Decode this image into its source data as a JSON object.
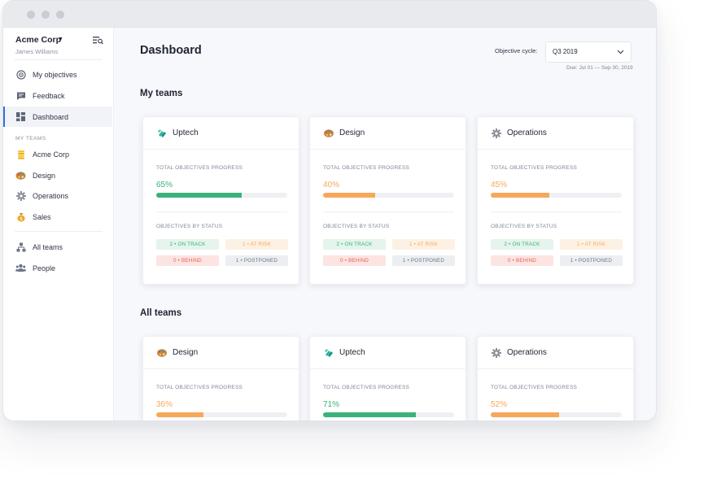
{
  "sidebar": {
    "org_name": "Acme Corp",
    "user_name": "James Williams",
    "nav": [
      {
        "label": "My objectives",
        "icon": "target-icon"
      },
      {
        "label": "Feedback",
        "icon": "chat-icon"
      },
      {
        "label": "Dashboard",
        "icon": "grid-icon",
        "active": true
      }
    ],
    "teams_section": "MY TEAMS",
    "teams": [
      {
        "label": "Acme Corp",
        "icon": "coins-icon"
      },
      {
        "label": "Design",
        "icon": "palette-icon"
      },
      {
        "label": "Operations",
        "icon": "gear-icon"
      },
      {
        "label": "Sales",
        "icon": "money-bag-icon"
      }
    ],
    "bottom": [
      {
        "label": "All teams",
        "icon": "org-chart-icon"
      },
      {
        "label": "People",
        "icon": "people-icon"
      }
    ]
  },
  "header": {
    "title": "Dashboard",
    "cycle_label": "Objective cycle:",
    "cycle_value": "Q3 2019",
    "due": "Due: Jul 01 — Sep 30, 2019"
  },
  "labels": {
    "progress": "TOTAL OBJECTIVES PROGRESS",
    "by_status": "OBJECTIVES BY STATUS"
  },
  "my_teams": {
    "title": "My teams",
    "cards": [
      {
        "name": "Uptech",
        "icon": "uptech-logo-icon",
        "progress": "65%",
        "progress_value": 0.65,
        "color": "#3bb27a",
        "on_track": "2 • ON TRACK",
        "at_risk": "1 • AT RISK",
        "behind": "0 • BEHIND",
        "postponed": "1 • POSTPONED"
      },
      {
        "name": "Design",
        "icon": "palette-icon",
        "progress": "40%",
        "progress_value": 0.4,
        "color": "#f6a85a",
        "on_track": "2 • ON TRACK",
        "at_risk": "1 • AT RISK",
        "behind": "0 • BEHIND",
        "postponed": "1 • POSTPONED"
      },
      {
        "name": "Operations",
        "icon": "gear-icon",
        "progress": "45%",
        "progress_value": 0.45,
        "color": "#f6a85a",
        "on_track": "2 • ON TRACK",
        "at_risk": "1 • AT RISK",
        "behind": "0 • BEHIND",
        "postponed": "1 • POSTPONED"
      }
    ]
  },
  "all_teams": {
    "title": "All teams",
    "cards": [
      {
        "name": "Design",
        "icon": "palette-icon",
        "progress": "36%",
        "progress_value": 0.36,
        "color": "#f6a85a"
      },
      {
        "name": "Uptech",
        "icon": "uptech-logo-icon",
        "progress": "71%",
        "progress_value": 0.71,
        "color": "#3bb27a"
      },
      {
        "name": "Operations",
        "icon": "gear-icon",
        "progress": "52%",
        "progress_value": 0.52,
        "color": "#f6a85a"
      }
    ]
  }
}
